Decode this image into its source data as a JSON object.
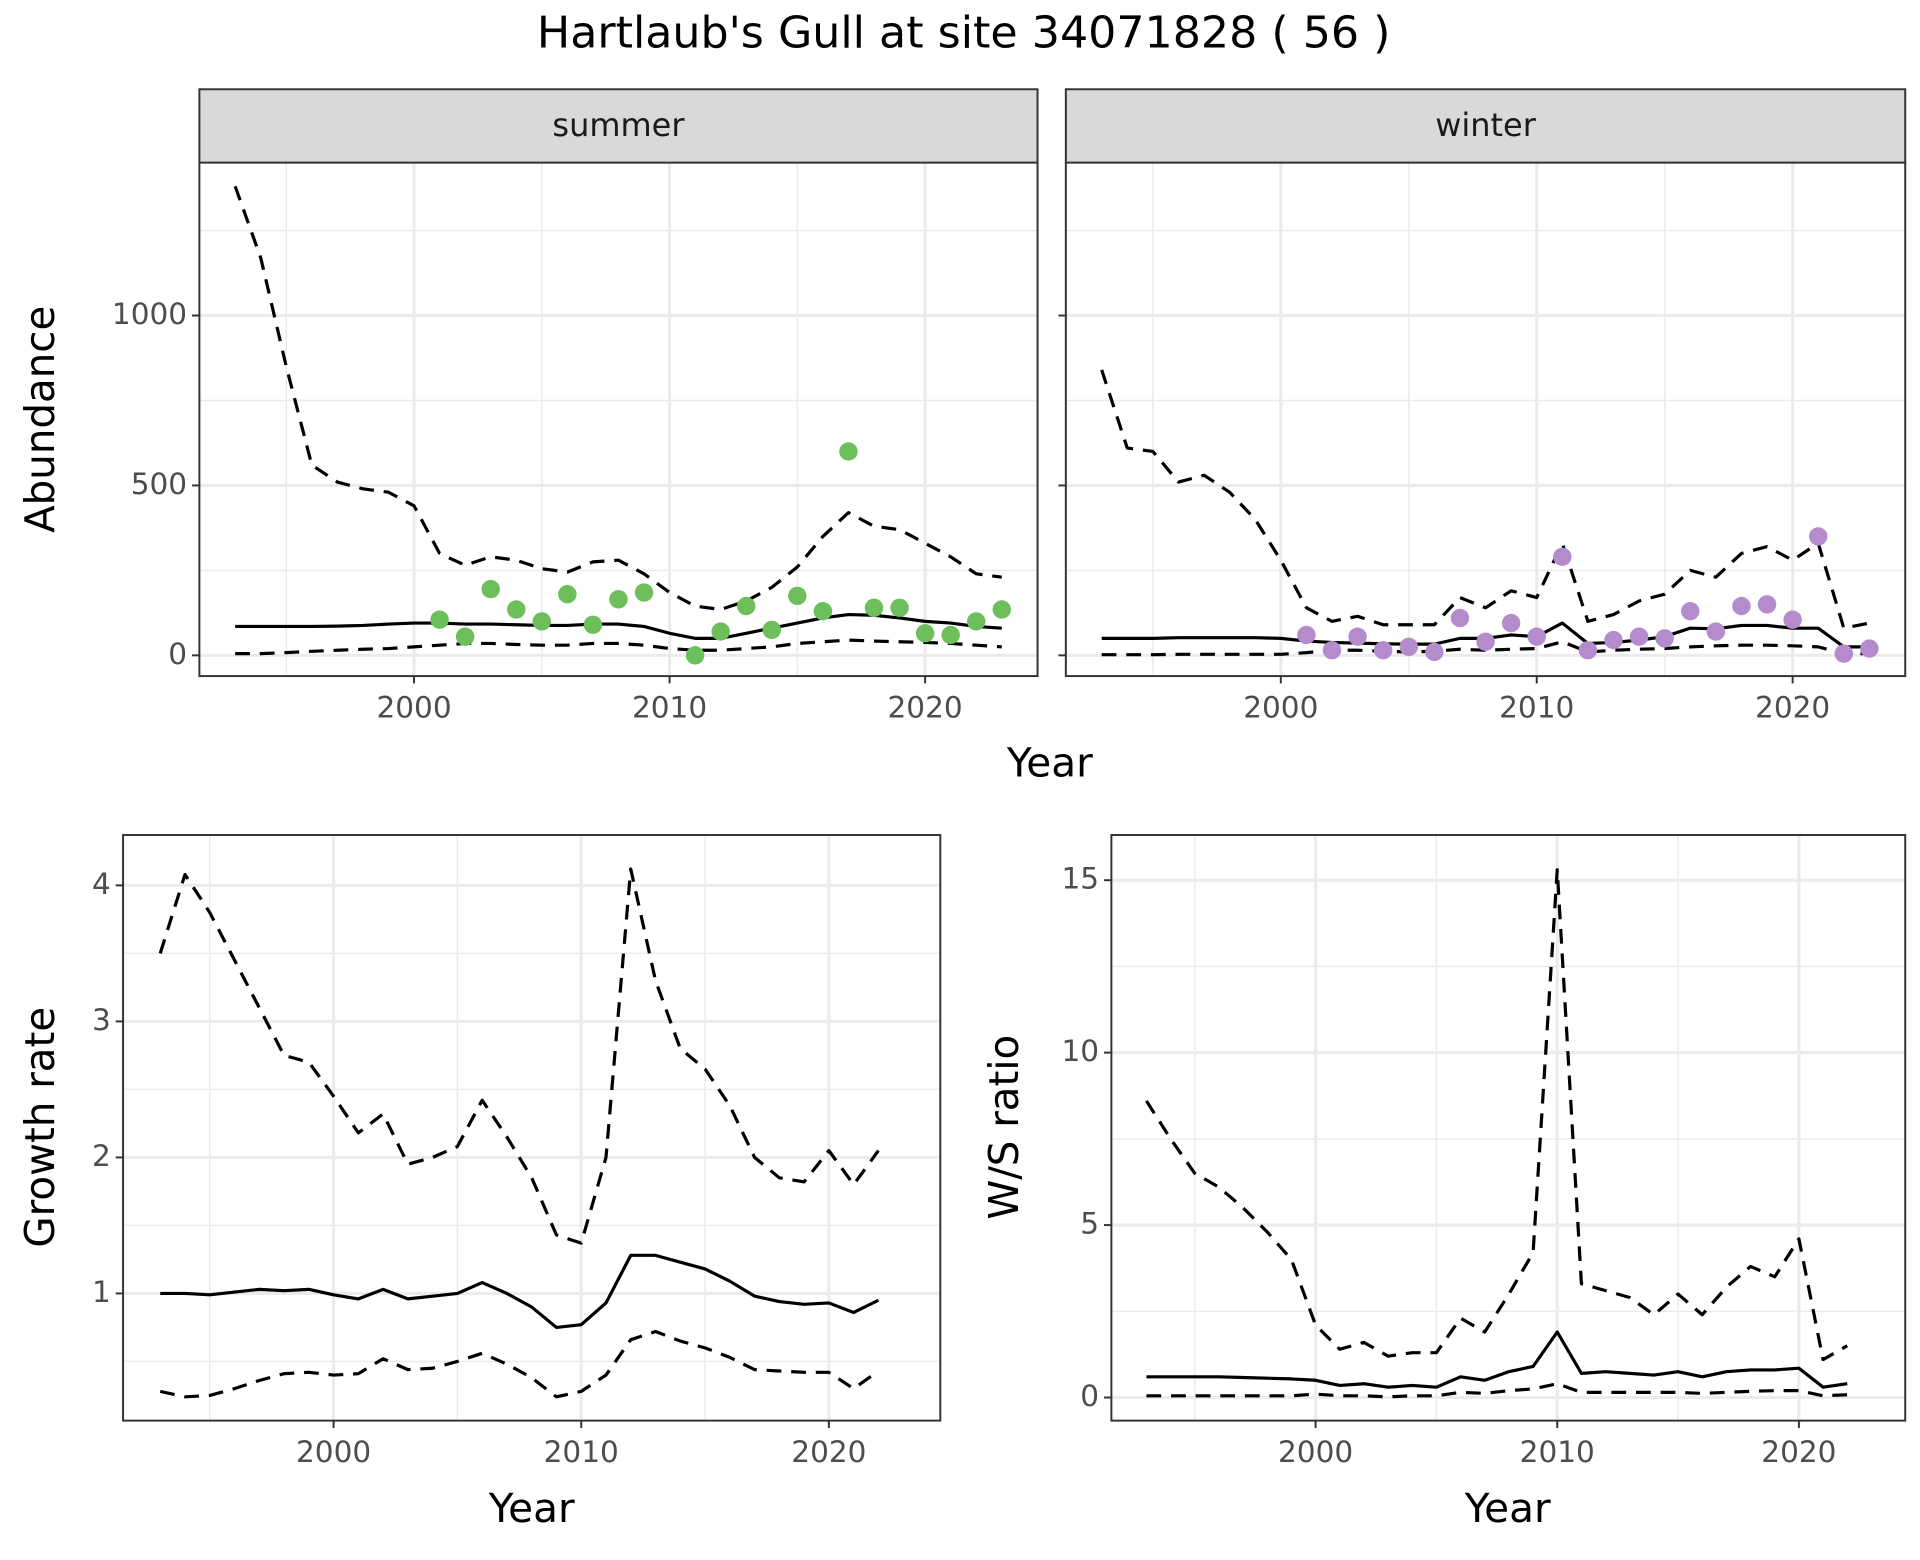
{
  "title": "Hartlaub's Gull at site 34071828 ( 56 )",
  "chart_data": [
    {
      "type": "line",
      "title": "summer",
      "xlabel": "Year",
      "ylabel": "Abundance",
      "xlim": [
        1991.6,
        2024.4
      ],
      "ylim": [
        -61,
        1450
      ],
      "xticks": [
        2000,
        2010,
        2020
      ],
      "yticks": [
        0,
        500,
        1000
      ],
      "minor_xgrid": [
        1995,
        2005,
        2015
      ],
      "minor_ygrid": [
        250,
        750,
        1250
      ],
      "grid": true,
      "ytick_labels": true,
      "x": [
        1993,
        1994,
        1995,
        1996,
        1997,
        1998,
        1999,
        2000,
        2001,
        2002,
        2003,
        2004,
        2005,
        2006,
        2007,
        2008,
        2009,
        2010,
        2011,
        2012,
        2013,
        2014,
        2015,
        2016,
        2017,
        2018,
        2019,
        2020,
        2021,
        2022,
        2023
      ],
      "series": [
        {
          "style": "dashed",
          "color": "#000000",
          "values": [
            1380,
            1170,
            850,
            560,
            510,
            490,
            480,
            440,
            300,
            265,
            290,
            280,
            255,
            245,
            275,
            280,
            240,
            185,
            145,
            135,
            160,
            200,
            260,
            350,
            420,
            380,
            370,
            330,
            290,
            240,
            230
          ]
        },
        {
          "style": "solid",
          "color": "#000000",
          "values": [
            85,
            85,
            85,
            85,
            86,
            88,
            92,
            95,
            95,
            92,
            92,
            90,
            88,
            88,
            92,
            92,
            85,
            65,
            50,
            50,
            65,
            80,
            95,
            110,
            120,
            118,
            110,
            100,
            95,
            85,
            80
          ]
        },
        {
          "style": "dashed",
          "color": "#000000",
          "values": [
            5,
            5,
            8,
            12,
            15,
            18,
            20,
            25,
            30,
            35,
            35,
            32,
            30,
            30,
            35,
            35,
            30,
            20,
            15,
            15,
            20,
            25,
            35,
            40,
            45,
            42,
            40,
            38,
            35,
            30,
            25
          ]
        },
        {
          "style": "points",
          "color": "#6dbf5c",
          "values": [
            null,
            null,
            null,
            null,
            null,
            null,
            null,
            null,
            105,
            55,
            195,
            135,
            100,
            180,
            90,
            165,
            185,
            null,
            0,
            70,
            145,
            75,
            175,
            130,
            600,
            140,
            140,
            65,
            60,
            100,
            135
          ]
        }
      ]
    },
    {
      "type": "line",
      "title": "winter",
      "xlim": [
        1991.6,
        2024.4
      ],
      "ylim": [
        -61,
        1450
      ],
      "xticks": [
        2000,
        2010,
        2020
      ],
      "yticks": [
        0,
        500,
        1000
      ],
      "minor_xgrid": [
        1995,
        2005,
        2015
      ],
      "minor_ygrid": [
        250,
        750,
        1250
      ],
      "grid": true,
      "ytick_labels": false,
      "x": [
        1993,
        1994,
        1995,
        1996,
        1997,
        1998,
        1999,
        2000,
        2001,
        2002,
        2003,
        2004,
        2005,
        2006,
        2007,
        2008,
        2009,
        2010,
        2011,
        2012,
        2013,
        2014,
        2015,
        2016,
        2017,
        2018,
        2019,
        2020,
        2021,
        2022,
        2023
      ],
      "series": [
        {
          "style": "dashed",
          "color": "#000000",
          "values": [
            840,
            610,
            600,
            510,
            530,
            480,
            400,
            280,
            140,
            100,
            115,
            90,
            90,
            90,
            170,
            140,
            190,
            170,
            330,
            100,
            120,
            160,
            180,
            250,
            230,
            300,
            320,
            280,
            330,
            80,
            95
          ]
        },
        {
          "style": "solid",
          "color": "#000000",
          "values": [
            50,
            50,
            50,
            52,
            52,
            52,
            52,
            50,
            42,
            38,
            36,
            34,
            33,
            33,
            50,
            50,
            60,
            55,
            95,
            35,
            38,
            45,
            55,
            80,
            78,
            88,
            88,
            80,
            80,
            25,
            25
          ]
        },
        {
          "style": "dashed",
          "color": "#000000",
          "values": [
            2,
            2,
            2,
            3,
            3,
            3,
            3,
            3,
            8,
            15,
            15,
            12,
            10,
            12,
            18,
            15,
            18,
            20,
            40,
            10,
            15,
            18,
            20,
            25,
            28,
            30,
            30,
            28,
            25,
            5,
            5
          ]
        },
        {
          "style": "points",
          "color": "#b48ccc",
          "values": [
            null,
            null,
            null,
            null,
            null,
            null,
            null,
            null,
            60,
            15,
            55,
            15,
            25,
            10,
            110,
            40,
            95,
            55,
            290,
            15,
            45,
            55,
            50,
            130,
            70,
            145,
            150,
            105,
            350,
            5,
            20
          ]
        }
      ]
    },
    {
      "type": "line",
      "xlabel": "Year",
      "ylabel": "Growth rate",
      "xlim": [
        1991.5,
        2024.5
      ],
      "ylim": [
        0.065,
        4.37
      ],
      "xticks": [
        2000,
        2010,
        2020
      ],
      "yticks": [
        1,
        2,
        3,
        4
      ],
      "minor_xgrid": [
        1995,
        2005,
        2015
      ],
      "minor_ygrid": [
        0.5,
        1.5,
        2.5,
        3.5
      ],
      "grid": true,
      "ytick_labels": true,
      "x": [
        1993,
        1994,
        1995,
        1996,
        1997,
        1998,
        1999,
        2000,
        2001,
        2002,
        2003,
        2004,
        2005,
        2006,
        2007,
        2008,
        2009,
        2010,
        2011,
        2012,
        2013,
        2014,
        2015,
        2016,
        2017,
        2018,
        2019,
        2020,
        2021,
        2022
      ],
      "series": [
        {
          "style": "dashed",
          "color": "#000000",
          "values": [
            3.5,
            4.08,
            3.8,
            3.45,
            3.1,
            2.75,
            2.7,
            2.45,
            2.18,
            2.32,
            1.95,
            2.0,
            2.08,
            2.42,
            2.15,
            1.85,
            1.43,
            1.37,
            2.0,
            4.12,
            3.3,
            2.8,
            2.65,
            2.38,
            2.0,
            1.85,
            1.82,
            2.05,
            1.8,
            2.05
          ]
        },
        {
          "style": "solid",
          "color": "#000000",
          "values": [
            1.0,
            1.0,
            0.99,
            1.01,
            1.03,
            1.02,
            1.03,
            0.99,
            0.96,
            1.03,
            0.96,
            0.98,
            1.0,
            1.08,
            1.0,
            0.9,
            0.75,
            0.77,
            0.93,
            1.28,
            1.28,
            1.23,
            1.18,
            1.09,
            0.98,
            0.94,
            0.92,
            0.93,
            0.86,
            0.95
          ]
        },
        {
          "style": "dashed",
          "color": "#000000",
          "values": [
            0.28,
            0.24,
            0.25,
            0.3,
            0.36,
            0.41,
            0.42,
            0.4,
            0.41,
            0.52,
            0.44,
            0.45,
            0.5,
            0.56,
            0.48,
            0.38,
            0.24,
            0.28,
            0.4,
            0.66,
            0.72,
            0.65,
            0.6,
            0.53,
            0.44,
            0.43,
            0.42,
            0.42,
            0.3,
            0.43
          ]
        }
      ]
    },
    {
      "type": "line",
      "xlabel": "Year",
      "ylabel": "W/S ratio",
      "xlim": [
        1991.55,
        2024.4
      ],
      "ylim": [
        -0.67,
        16.31
      ],
      "xticks": [
        2000,
        2010,
        2020
      ],
      "yticks": [
        0,
        5,
        10,
        15
      ],
      "minor_xgrid": [
        1995,
        2005,
        2015
      ],
      "minor_ygrid": [
        2.5,
        7.5,
        12.5
      ],
      "grid": true,
      "ytick_labels": true,
      "x": [
        1993,
        1994,
        1995,
        1996,
        1997,
        1998,
        1999,
        2000,
        2001,
        2002,
        2003,
        2004,
        2005,
        2006,
        2007,
        2008,
        2009,
        2010,
        2011,
        2012,
        2013,
        2014,
        2015,
        2016,
        2017,
        2018,
        2019,
        2020,
        2021,
        2022
      ],
      "series": [
        {
          "style": "dashed",
          "color": "#000000",
          "values": [
            8.6,
            7.5,
            6.5,
            6.1,
            5.5,
            4.8,
            4.0,
            2.1,
            1.4,
            1.6,
            1.2,
            1.3,
            1.3,
            2.3,
            1.9,
            3.0,
            4.2,
            15.3,
            3.3,
            3.1,
            2.9,
            2.4,
            3.0,
            2.4,
            3.2,
            3.8,
            3.5,
            4.6,
            1.1,
            1.5
          ]
        },
        {
          "style": "solid",
          "color": "#000000",
          "values": [
            0.6,
            0.6,
            0.6,
            0.6,
            0.58,
            0.56,
            0.54,
            0.5,
            0.35,
            0.4,
            0.3,
            0.35,
            0.3,
            0.6,
            0.5,
            0.75,
            0.9,
            1.9,
            0.7,
            0.75,
            0.7,
            0.65,
            0.75,
            0.6,
            0.75,
            0.8,
            0.8,
            0.85,
            0.3,
            0.4
          ]
        },
        {
          "style": "dashed",
          "color": "#000000",
          "values": [
            0.05,
            0.05,
            0.05,
            0.05,
            0.05,
            0.05,
            0.05,
            0.1,
            0.05,
            0.05,
            0.02,
            0.05,
            0.05,
            0.15,
            0.12,
            0.2,
            0.25,
            0.4,
            0.15,
            0.15,
            0.15,
            0.15,
            0.15,
            0.12,
            0.15,
            0.18,
            0.2,
            0.2,
            0.05,
            0.08
          ]
        }
      ]
    }
  ]
}
